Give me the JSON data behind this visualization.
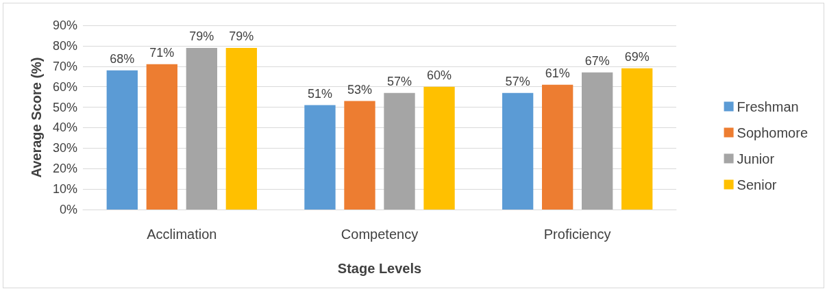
{
  "chart_data": {
    "type": "bar",
    "xlabel": "Stage Levels",
    "ylabel": "Average Score (%)",
    "categories": [
      "Acclimation",
      "Competency",
      "Proficiency"
    ],
    "series": [
      {
        "name": "Freshman",
        "color": "#5b9bd5",
        "values": [
          68,
          51,
          57
        ],
        "value_labels": [
          "68%",
          "51%",
          "57%"
        ]
      },
      {
        "name": "Sophomore",
        "color": "#ed7d31",
        "values": [
          71,
          53,
          61
        ],
        "value_labels": [
          "71%",
          "53%",
          "61%"
        ]
      },
      {
        "name": "Junior",
        "color": "#a5a5a5",
        "values": [
          79,
          57,
          67
        ],
        "value_labels": [
          "79%",
          "57%",
          "67%"
        ]
      },
      {
        "name": "Senior",
        "color": "#ffc000",
        "values": [
          79,
          60,
          69
        ],
        "value_labels": [
          "79%",
          "60%",
          "69%"
        ]
      }
    ],
    "ylim": [
      0,
      90
    ],
    "yticks": [
      {
        "value": 0,
        "label": "0%"
      },
      {
        "value": 10,
        "label": "10%"
      },
      {
        "value": 20,
        "label": "20%"
      },
      {
        "value": 30,
        "label": "30%"
      },
      {
        "value": 40,
        "label": "40%"
      },
      {
        "value": 50,
        "label": "50%"
      },
      {
        "value": 60,
        "label": "60%"
      },
      {
        "value": 70,
        "label": "70%"
      },
      {
        "value": 80,
        "label": "80%"
      },
      {
        "value": 90,
        "label": "90%"
      }
    ],
    "grid": "y",
    "legend": "right"
  }
}
